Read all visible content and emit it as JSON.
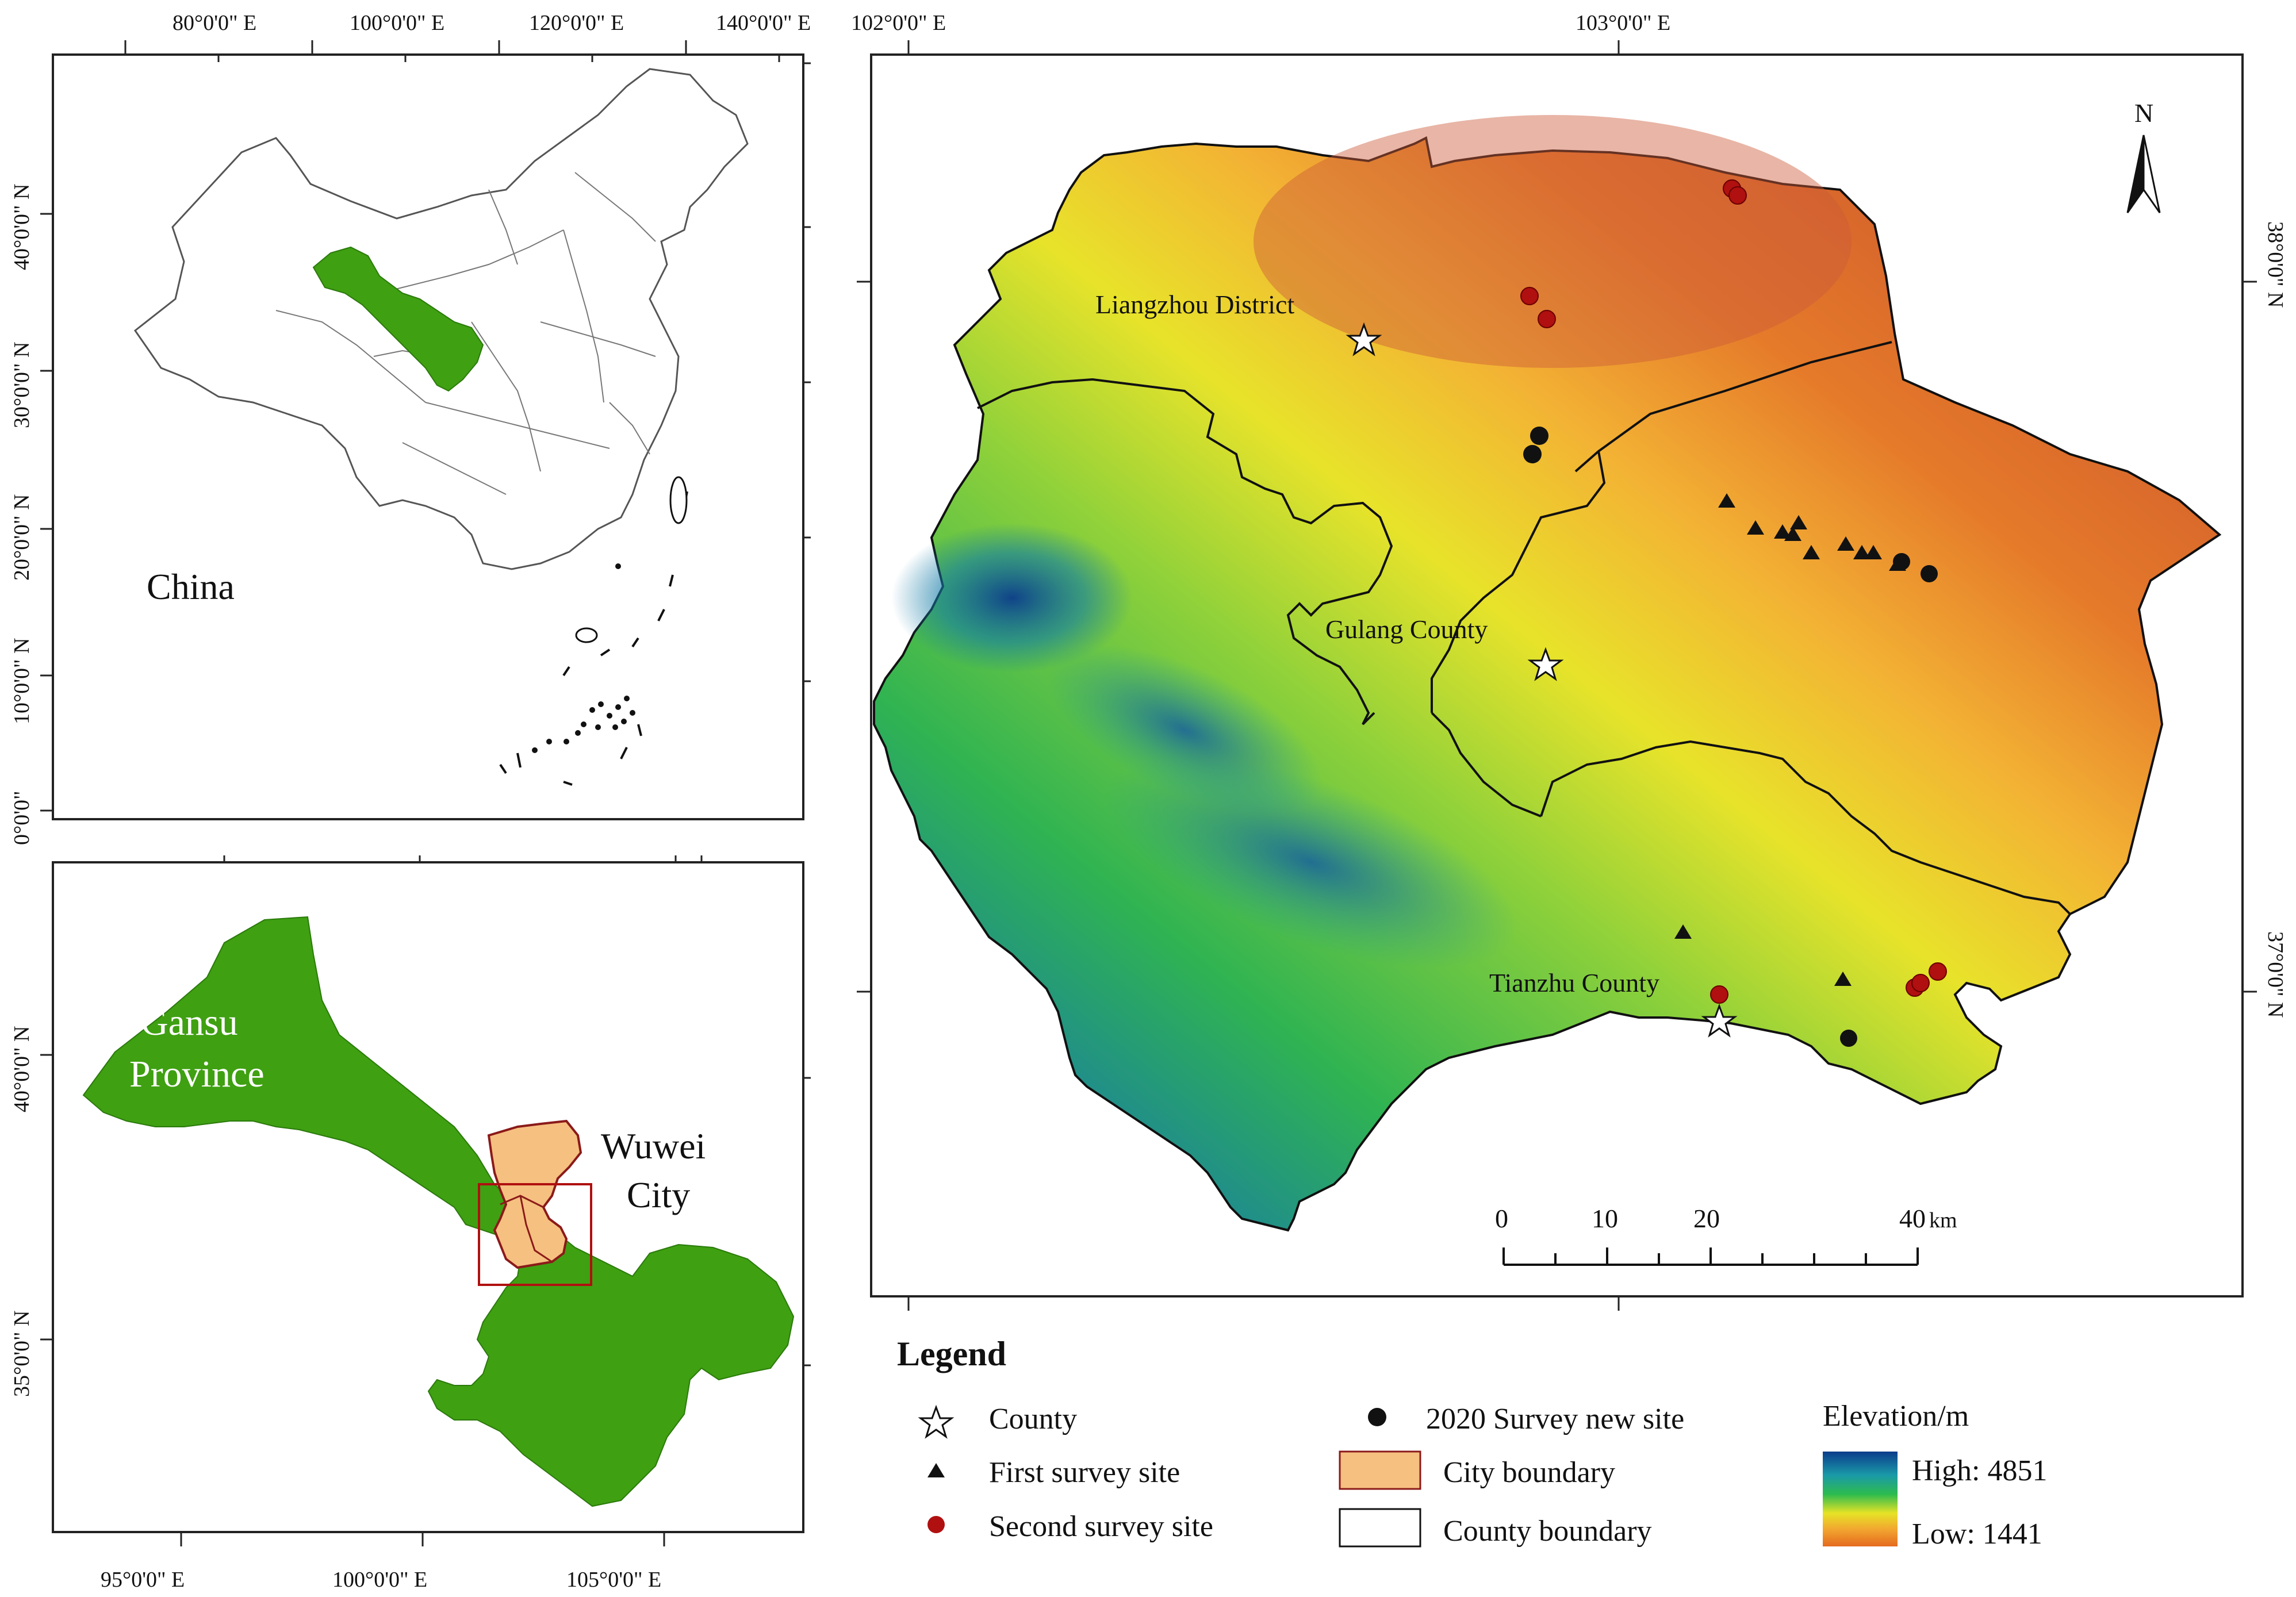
{
  "china_panel": {
    "label": "China",
    "top_ticks": [
      "80°0'0\" E",
      "100°0'0\" E",
      "120°0'0\" E",
      "140°0'0\" E"
    ],
    "left_ticks": [
      "40°0'0\" N",
      "30°0'0\" N",
      "20°0'0\" N",
      "10°0'0\" N",
      "0°0'0\""
    ]
  },
  "gansu_panel": {
    "province_label_1": "Gansu",
    "province_label_2": "Province",
    "city_label_1": "Wuwei",
    "city_label_2": "City",
    "bottom_ticks": [
      "95°0'0\" E",
      "100°0'0\" E",
      "105°0'0\" E"
    ],
    "left_ticks": [
      "40°0'0\" N",
      "35°0'0\" N"
    ]
  },
  "main_map": {
    "top_ticks": [
      "102°0'0\" E",
      "103°0'0\" E"
    ],
    "right_ticks": [
      "38°0'0\" N",
      "37°0'0\" N"
    ],
    "north_label": "N",
    "places": {
      "liangzhou": "Liangzhou District",
      "gulang": "Gulang County",
      "tianzhu": "Tianzhu County"
    },
    "scale_bar": {
      "labels": [
        "0",
        "10",
        "20",
        "40"
      ],
      "unit": "km"
    }
  },
  "legend": {
    "title": "Legend",
    "items": {
      "county": "County",
      "first": "First survey site",
      "second": "Second survey site",
      "new_site": "2020 Survey new site",
      "city_boundary": "City boundary",
      "county_boundary": "County boundary"
    },
    "elevation": {
      "title": "Elevation/m",
      "high": "High: 4851",
      "low": "Low: 1441"
    }
  },
  "colors": {
    "province_green": "#3fa012",
    "city_fill": "#f6c080",
    "city_outline": "#8b1a1a",
    "second_site_red": "#b01010",
    "elev_high": "#0b3c8c",
    "elev_low": "#e46a1e"
  }
}
